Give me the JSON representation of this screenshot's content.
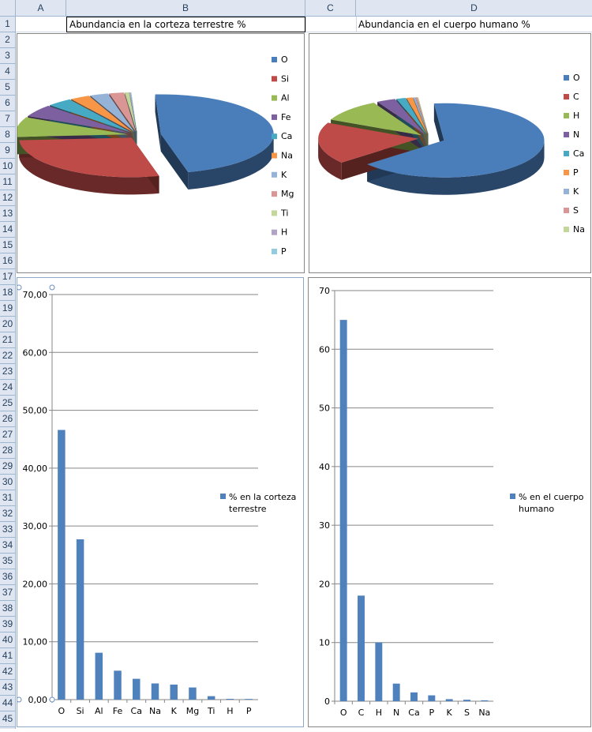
{
  "columns": [
    "A",
    "B",
    "C",
    "D"
  ],
  "rows": [
    "1",
    "2",
    "3",
    "4",
    "5",
    "6",
    "7",
    "8",
    "9",
    "10",
    "11",
    "12",
    "13",
    "14",
    "15",
    "16",
    "17",
    "18",
    "19",
    "20",
    "21",
    "22",
    "23",
    "24",
    "25",
    "26",
    "27",
    "28",
    "29",
    "30",
    "31",
    "32",
    "33",
    "34",
    "35",
    "36",
    "37",
    "38",
    "39",
    "40",
    "41",
    "42",
    "43",
    "44",
    "45"
  ],
  "cells": {
    "B1": "Abundancia en la corteza terrestre %",
    "D1": "Abundancia en el cuerpo humano %"
  },
  "chart_data": [
    {
      "type": "pie",
      "categories": [
        "O",
        "Si",
        "Al",
        "Fe",
        "Ca",
        "Na",
        "K",
        "Mg",
        "Ti",
        "H",
        "P"
      ],
      "values": [
        46.6,
        27.7,
        8.1,
        5.0,
        3.6,
        2.8,
        2.6,
        2.1,
        0.6,
        0.14,
        0.12
      ],
      "colors": [
        "#4a7ebb",
        "#be4b48",
        "#98b954",
        "#7d60a0",
        "#46aac5",
        "#f79646",
        "#95b3d7",
        "#d99694",
        "#c3d69b",
        "#b3a2c7",
        "#93cddd"
      ],
      "legend_position": "right"
    },
    {
      "type": "pie",
      "categories": [
        "O",
        "C",
        "H",
        "N",
        "Ca",
        "P",
        "K",
        "S",
        "Na"
      ],
      "values": [
        65,
        18,
        10,
        3,
        1.5,
        1,
        0.35,
        0.25,
        0.15
      ],
      "colors": [
        "#4a7ebb",
        "#be4b48",
        "#98b954",
        "#7d60a0",
        "#46aac5",
        "#f79646",
        "#95b3d7",
        "#d99694",
        "#c3d69b"
      ],
      "legend_position": "right"
    },
    {
      "type": "bar",
      "categories": [
        "O",
        "Si",
        "Al",
        "Fe",
        "Ca",
        "Na",
        "K",
        "Mg",
        "Ti",
        "H",
        "P"
      ],
      "series": [
        {
          "name": "% en la corteza terrestre",
          "values": [
            46.6,
            27.7,
            8.1,
            5.0,
            3.6,
            2.8,
            2.6,
            2.1,
            0.6,
            0.14,
            0.12
          ]
        }
      ],
      "yticks": [
        "0,00",
        "10,00",
        "20,00",
        "30,00",
        "40,00",
        "50,00",
        "60,00",
        "70,00"
      ],
      "ylim": [
        0,
        70
      ],
      "grid": true,
      "legend_position": "right",
      "color": "#4f81bd"
    },
    {
      "type": "bar",
      "categories": [
        "O",
        "C",
        "H",
        "N",
        "Ca",
        "P",
        "K",
        "S",
        "Na"
      ],
      "series": [
        {
          "name": "% en el cuerpo humano",
          "values": [
            65,
            18,
            10,
            3,
            1.5,
            1,
            0.35,
            0.25,
            0.15
          ]
        }
      ],
      "yticks": [
        "0",
        "10",
        "20",
        "30",
        "40",
        "50",
        "60",
        "70"
      ],
      "ylim": [
        0,
        70
      ],
      "grid": true,
      "legend_position": "right",
      "color": "#4f81bd"
    }
  ]
}
